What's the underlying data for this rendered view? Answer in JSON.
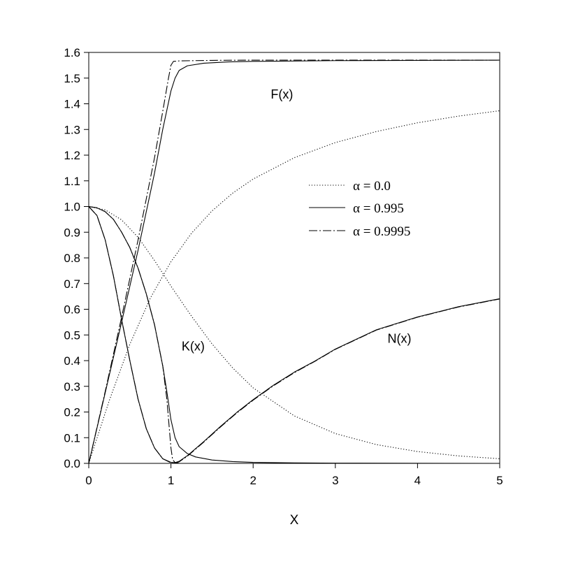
{
  "chart_data": {
    "type": "line",
    "xlabel": "X",
    "ylabel": "",
    "xlim": [
      0,
      5
    ],
    "ylim": [
      0,
      1.6
    ],
    "xticks": [
      "0",
      "1",
      "2",
      "3",
      "4",
      "5"
    ],
    "yticks": [
      "0.0",
      "0.1",
      "0.2",
      "0.3",
      "0.4",
      "0.5",
      "0.6",
      "0.7",
      "0.8",
      "0.9",
      "1.0",
      "1.1",
      "1.2",
      "1.3",
      "1.4",
      "1.5",
      "1.6"
    ],
    "grid": false,
    "legend_position": "center-right",
    "legend": [
      {
        "text": "α = 0.0",
        "style": "dotted"
      },
      {
        "text": "α = 0.995",
        "style": "solid"
      },
      {
        "text": "α = 0.9995",
        "style": "dash-dot"
      }
    ],
    "curve_labels": [
      {
        "text": "F(x)",
        "x": 2.35,
        "y": 1.42
      },
      {
        "text": "K(x)",
        "x": 1.27,
        "y": 0.44
      },
      {
        "text": "N(x)",
        "x": 3.78,
        "y": 0.47
      }
    ],
    "series": [
      {
        "curve": "F",
        "alpha": "0.0",
        "style": "dotted",
        "points": [
          [
            0,
            0
          ],
          [
            0.25,
            0.245
          ],
          [
            0.5,
            0.464
          ],
          [
            0.75,
            0.644
          ],
          [
            1.0,
            0.785
          ],
          [
            1.25,
            0.896
          ],
          [
            1.5,
            0.983
          ],
          [
            1.75,
            1.052
          ],
          [
            2.0,
            1.107
          ],
          [
            2.5,
            1.19
          ],
          [
            3.0,
            1.249
          ],
          [
            3.5,
            1.292
          ],
          [
            4.0,
            1.326
          ],
          [
            4.5,
            1.352
          ],
          [
            5.0,
            1.373
          ]
        ]
      },
      {
        "curve": "F",
        "alpha": "0.995",
        "style": "solid",
        "points": [
          [
            0,
            0
          ],
          [
            0.2,
            0.275
          ],
          [
            0.4,
            0.55
          ],
          [
            0.6,
            0.83
          ],
          [
            0.8,
            1.13
          ],
          [
            0.9,
            1.3
          ],
          [
            1.0,
            1.45
          ],
          [
            1.05,
            1.5
          ],
          [
            1.1,
            1.53
          ],
          [
            1.2,
            1.548
          ],
          [
            1.4,
            1.558
          ],
          [
            1.7,
            1.563
          ],
          [
            2.0,
            1.565
          ],
          [
            3.0,
            1.568
          ],
          [
            4.0,
            1.569
          ],
          [
            5.0,
            1.57
          ]
        ]
      },
      {
        "curve": "F",
        "alpha": "0.9995",
        "style": "dash-dot",
        "points": [
          [
            0,
            0
          ],
          [
            0.2,
            0.28
          ],
          [
            0.4,
            0.57
          ],
          [
            0.6,
            0.87
          ],
          [
            0.8,
            1.19
          ],
          [
            0.9,
            1.37
          ],
          [
            0.97,
            1.5
          ],
          [
            1.0,
            1.55
          ],
          [
            1.03,
            1.565
          ],
          [
            1.1,
            1.567
          ],
          [
            1.5,
            1.569
          ],
          [
            2.0,
            1.57
          ],
          [
            3.0,
            1.57
          ],
          [
            5.0,
            1.57
          ]
        ]
      },
      {
        "curve": "K",
        "alpha": "0.0",
        "style": "dotted",
        "points": [
          [
            0,
            1.0
          ],
          [
            0.2,
            0.987
          ],
          [
            0.4,
            0.948
          ],
          [
            0.6,
            0.88
          ],
          [
            0.8,
            0.79
          ],
          [
            1.0,
            0.69
          ],
          [
            1.25,
            0.573
          ],
          [
            1.5,
            0.465
          ],
          [
            1.75,
            0.372
          ],
          [
            2.0,
            0.294
          ],
          [
            2.5,
            0.185
          ],
          [
            3.0,
            0.116
          ],
          [
            3.5,
            0.073
          ],
          [
            4.0,
            0.046
          ],
          [
            4.5,
            0.029
          ],
          [
            5.0,
            0.018
          ]
        ]
      },
      {
        "curve": "K",
        "alpha": "0.995",
        "style": "solid",
        "points": [
          [
            0,
            1.0
          ],
          [
            0.1,
            0.995
          ],
          [
            0.2,
            0.98
          ],
          [
            0.3,
            0.95
          ],
          [
            0.4,
            0.9
          ],
          [
            0.5,
            0.84
          ],
          [
            0.6,
            0.76
          ],
          [
            0.7,
            0.66
          ],
          [
            0.8,
            0.54
          ],
          [
            0.9,
            0.38
          ],
          [
            0.95,
            0.28
          ],
          [
            1.0,
            0.17
          ],
          [
            1.05,
            0.1
          ],
          [
            1.1,
            0.065
          ],
          [
            1.2,
            0.038
          ],
          [
            1.3,
            0.025
          ],
          [
            1.5,
            0.013
          ],
          [
            1.75,
            0.007
          ],
          [
            2.0,
            0.004
          ],
          [
            2.5,
            0.002
          ],
          [
            3.0,
            0.001
          ],
          [
            5.0,
            0.0
          ]
        ]
      },
      {
        "curve": "K",
        "alpha": "0.9995",
        "style": "dash-dot",
        "points": [
          [
            0,
            1.0
          ],
          [
            0.1,
            0.995
          ],
          [
            0.2,
            0.98
          ],
          [
            0.3,
            0.95
          ],
          [
            0.4,
            0.9
          ],
          [
            0.5,
            0.84
          ],
          [
            0.6,
            0.76
          ],
          [
            0.7,
            0.66
          ],
          [
            0.8,
            0.54
          ],
          [
            0.9,
            0.38
          ],
          [
            0.95,
            0.25
          ],
          [
            1.0,
            0.06
          ],
          [
            1.02,
            0.015
          ],
          [
            1.05,
            0.003
          ],
          [
            1.1,
            0.0
          ],
          [
            5.0,
            0.0
          ]
        ]
      },
      {
        "curve": "N",
        "alpha": "0.995",
        "style": "solid",
        "points": [
          [
            0,
            1.0
          ],
          [
            0.1,
            0.965
          ],
          [
            0.2,
            0.87
          ],
          [
            0.3,
            0.73
          ],
          [
            0.4,
            0.56
          ],
          [
            0.5,
            0.4
          ],
          [
            0.6,
            0.25
          ],
          [
            0.7,
            0.135
          ],
          [
            0.8,
            0.06
          ],
          [
            0.9,
            0.018
          ],
          [
            1.0,
            0.004
          ],
          [
            1.05,
            0.003
          ],
          [
            1.1,
            0.008
          ],
          [
            1.2,
            0.03
          ],
          [
            1.4,
            0.085
          ],
          [
            1.6,
            0.143
          ],
          [
            1.8,
            0.198
          ],
          [
            2.0,
            0.248
          ],
          [
            2.25,
            0.305
          ],
          [
            2.5,
            0.355
          ],
          [
            2.75,
            0.398
          ],
          [
            3.0,
            0.445
          ],
          [
            3.5,
            0.52
          ],
          [
            4.0,
            0.57
          ],
          [
            4.5,
            0.61
          ],
          [
            5.0,
            0.641
          ]
        ]
      },
      {
        "curve": "N",
        "alpha": "0.9995",
        "style": "dash-dot",
        "points": [
          [
            0,
            1.0
          ],
          [
            0.1,
            0.965
          ],
          [
            0.2,
            0.87
          ],
          [
            0.3,
            0.73
          ],
          [
            0.4,
            0.56
          ],
          [
            0.5,
            0.4
          ],
          [
            0.6,
            0.25
          ],
          [
            0.7,
            0.135
          ],
          [
            0.8,
            0.06
          ],
          [
            0.9,
            0.018
          ],
          [
            1.0,
            0.002
          ],
          [
            1.03,
            0.0
          ],
          [
            1.1,
            0.006
          ],
          [
            1.2,
            0.028
          ],
          [
            1.4,
            0.083
          ],
          [
            1.6,
            0.141
          ],
          [
            1.8,
            0.196
          ],
          [
            2.0,
            0.246
          ],
          [
            2.25,
            0.303
          ],
          [
            2.5,
            0.353
          ],
          [
            2.75,
            0.397
          ],
          [
            3.0,
            0.444
          ],
          [
            3.5,
            0.519
          ],
          [
            4.0,
            0.569
          ],
          [
            4.5,
            0.609
          ],
          [
            5.0,
            0.64
          ]
        ]
      }
    ]
  }
}
